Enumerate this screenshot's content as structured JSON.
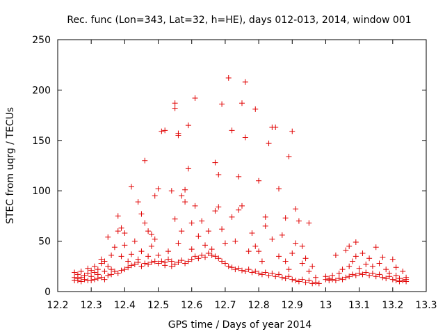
{
  "chart_data": {
    "type": "scatter",
    "title": "Rec. func (Lon=343, Lat=32, h=HE), days 012-013, 2014, window 001",
    "xlabel": "GPS time / Days of year 2014",
    "ylabel": "STEC from uqrg / TECUs",
    "xlim": [
      12.2,
      13.3
    ],
    "ylim": [
      0,
      250
    ],
    "xticks": [
      12.2,
      12.3,
      12.4,
      12.5,
      12.6,
      12.7,
      12.8,
      12.9,
      13,
      13.1,
      13.2,
      13.3
    ],
    "xtick_labels": [
      "12.2",
      "12.3",
      "12.4",
      "12.5",
      "12.6",
      "12.7",
      "12.8",
      "12.9",
      "13",
      "13.1",
      "13.2",
      "13.3"
    ],
    "yticks": [
      0,
      50,
      100,
      150,
      200,
      250
    ],
    "ytick_labels": [
      "0",
      "50",
      "100",
      "150",
      "200",
      "250"
    ],
    "marker": "plus",
    "color": "#e00000",
    "grid": false,
    "series": [
      {
        "name": "STEC",
        "points": [
          [
            12.25,
            11
          ],
          [
            12.25,
            14
          ],
          [
            12.25,
            19
          ],
          [
            12.26,
            11
          ],
          [
            12.26,
            13
          ],
          [
            12.26,
            17
          ],
          [
            12.27,
            10
          ],
          [
            12.27,
            14
          ],
          [
            12.27,
            20
          ],
          [
            12.28,
            12
          ],
          [
            12.28,
            16
          ],
          [
            12.29,
            11
          ],
          [
            12.29,
            18
          ],
          [
            12.29,
            23
          ],
          [
            12.3,
            11
          ],
          [
            12.3,
            15
          ],
          [
            12.3,
            21
          ],
          [
            12.31,
            12
          ],
          [
            12.31,
            19
          ],
          [
            12.31,
            25
          ],
          [
            12.32,
            13
          ],
          [
            12.32,
            17
          ],
          [
            12.32,
            22
          ],
          [
            12.33,
            14
          ],
          [
            12.33,
            28
          ],
          [
            12.33,
            32
          ],
          [
            12.34,
            12
          ],
          [
            12.34,
            20
          ],
          [
            12.34,
            30
          ],
          [
            12.35,
            16
          ],
          [
            12.35,
            25
          ],
          [
            12.35,
            54
          ],
          [
            12.36,
            17
          ],
          [
            12.36,
            22
          ],
          [
            12.36,
            36
          ],
          [
            12.37,
            20
          ],
          [
            12.37,
            44
          ],
          [
            12.38,
            18
          ],
          [
            12.38,
            60
          ],
          [
            12.38,
            75
          ],
          [
            12.39,
            21
          ],
          [
            12.39,
            35
          ],
          [
            12.39,
            63
          ],
          [
            12.4,
            22
          ],
          [
            12.4,
            46
          ],
          [
            12.4,
            58
          ],
          [
            12.41,
            24
          ],
          [
            12.41,
            30
          ],
          [
            12.42,
            26
          ],
          [
            12.42,
            104
          ],
          [
            12.42,
            37
          ],
          [
            12.43,
            27
          ],
          [
            12.43,
            50
          ],
          [
            12.44,
            29
          ],
          [
            12.44,
            89
          ],
          [
            12.44,
            32
          ],
          [
            12.45,
            25
          ],
          [
            12.45,
            40
          ],
          [
            12.45,
            77
          ],
          [
            12.46,
            28
          ],
          [
            12.46,
            68
          ],
          [
            12.46,
            130
          ],
          [
            12.47,
            27
          ],
          [
            12.47,
            35
          ],
          [
            12.47,
            60
          ],
          [
            12.48,
            29
          ],
          [
            12.48,
            45
          ],
          [
            12.48,
            57
          ],
          [
            12.49,
            30
          ],
          [
            12.49,
            52
          ],
          [
            12.49,
            95
          ],
          [
            12.5,
            28
          ],
          [
            12.5,
            36
          ],
          [
            12.5,
            102
          ],
          [
            12.51,
            30
          ],
          [
            12.51,
            159
          ],
          [
            12.52,
            29
          ],
          [
            12.52,
            160
          ],
          [
            12.52,
            26
          ],
          [
            12.53,
            32
          ],
          [
            12.53,
            40
          ],
          [
            12.54,
            30
          ],
          [
            12.54,
            100
          ],
          [
            12.54,
            25
          ],
          [
            12.55,
            27
          ],
          [
            12.55,
            72
          ],
          [
            12.55,
            187
          ],
          [
            12.55,
            182
          ],
          [
            12.56,
            29
          ],
          [
            12.56,
            48
          ],
          [
            12.56,
            155
          ],
          [
            12.56,
            157
          ],
          [
            12.57,
            31
          ],
          [
            12.57,
            60
          ],
          [
            12.57,
            95
          ],
          [
            12.58,
            28
          ],
          [
            12.58,
            101
          ],
          [
            12.58,
            89
          ],
          [
            12.59,
            30
          ],
          [
            12.59,
            122
          ],
          [
            12.59,
            165
          ],
          [
            12.6,
            32
          ],
          [
            12.6,
            42
          ],
          [
            12.6,
            68
          ],
          [
            12.61,
            35
          ],
          [
            12.61,
            192
          ],
          [
            12.61,
            85
          ],
          [
            12.62,
            33
          ],
          [
            12.62,
            55
          ],
          [
            12.63,
            36
          ],
          [
            12.63,
            70
          ],
          [
            12.64,
            34
          ],
          [
            12.64,
            46
          ],
          [
            12.65,
            38
          ],
          [
            12.65,
            60
          ],
          [
            12.66,
            36
          ],
          [
            12.66,
            42
          ],
          [
            12.67,
            35
          ],
          [
            12.67,
            128
          ],
          [
            12.67,
            80
          ],
          [
            12.68,
            33
          ],
          [
            12.68,
            116
          ],
          [
            12.68,
            84
          ],
          [
            12.69,
            30
          ],
          [
            12.69,
            186
          ],
          [
            12.69,
            62
          ],
          [
            12.7,
            28
          ],
          [
            12.7,
            48
          ],
          [
            12.71,
            25
          ],
          [
            12.71,
            212
          ],
          [
            12.72,
            24
          ],
          [
            12.72,
            160
          ],
          [
            12.72,
            74
          ],
          [
            12.73,
            22
          ],
          [
            12.73,
            50
          ],
          [
            12.74,
            23
          ],
          [
            12.74,
            114
          ],
          [
            12.74,
            81
          ],
          [
            12.75,
            21
          ],
          [
            12.75,
            187
          ],
          [
            12.75,
            85
          ],
          [
            12.76,
            20
          ],
          [
            12.76,
            153
          ],
          [
            12.76,
            208
          ],
          [
            12.77,
            22
          ],
          [
            12.77,
            40
          ],
          [
            12.78,
            19
          ],
          [
            12.78,
            58
          ],
          [
            12.79,
            20
          ],
          [
            12.79,
            181
          ],
          [
            12.79,
            45
          ],
          [
            12.8,
            18
          ],
          [
            12.8,
            110
          ],
          [
            12.8,
            40
          ],
          [
            12.81,
            17
          ],
          [
            12.81,
            30
          ],
          [
            12.82,
            19
          ],
          [
            12.82,
            74
          ],
          [
            12.82,
            65
          ],
          [
            12.83,
            16
          ],
          [
            12.83,
            147
          ],
          [
            12.84,
            18
          ],
          [
            12.84,
            163
          ],
          [
            12.84,
            52
          ],
          [
            12.85,
            15
          ],
          [
            12.85,
            163
          ],
          [
            12.86,
            17
          ],
          [
            12.86,
            102
          ],
          [
            12.86,
            35
          ],
          [
            12.87,
            14
          ],
          [
            12.87,
            56
          ],
          [
            12.88,
            13
          ],
          [
            12.88,
            73
          ],
          [
            12.88,
            30
          ],
          [
            12.89,
            15
          ],
          [
            12.89,
            134
          ],
          [
            12.89,
            22
          ],
          [
            12.9,
            12
          ],
          [
            12.9,
            159
          ],
          [
            12.9,
            38
          ],
          [
            12.91,
            11
          ],
          [
            12.91,
            82
          ],
          [
            12.91,
            48
          ],
          [
            12.92,
            10
          ],
          [
            12.92,
            70
          ],
          [
            12.93,
            12
          ],
          [
            12.93,
            45
          ],
          [
            12.93,
            28
          ],
          [
            12.94,
            9
          ],
          [
            12.94,
            33
          ],
          [
            12.95,
            11
          ],
          [
            12.95,
            68
          ],
          [
            12.95,
            20
          ],
          [
            12.96,
            8
          ],
          [
            12.96,
            25
          ],
          [
            12.97,
            9
          ],
          [
            12.97,
            14
          ],
          [
            12.98,
            8
          ],
          [
            13.0,
            12
          ],
          [
            13.0,
            15
          ],
          [
            13.01,
            11
          ],
          [
            13.01,
            13
          ],
          [
            13.02,
            12
          ],
          [
            13.02,
            16
          ],
          [
            13.03,
            11
          ],
          [
            13.03,
            36
          ],
          [
            13.04,
            13
          ],
          [
            13.04,
            18
          ],
          [
            13.05,
            12
          ],
          [
            13.05,
            22
          ],
          [
            13.06,
            14
          ],
          [
            13.06,
            41
          ],
          [
            13.07,
            15
          ],
          [
            13.07,
            25
          ],
          [
            13.07,
            45
          ],
          [
            13.08,
            17
          ],
          [
            13.08,
            30
          ],
          [
            13.09,
            16
          ],
          [
            13.09,
            49
          ],
          [
            13.09,
            35
          ],
          [
            13.1,
            18
          ],
          [
            13.1,
            23
          ],
          [
            13.11,
            17
          ],
          [
            13.11,
            38
          ],
          [
            13.12,
            19
          ],
          [
            13.12,
            27
          ],
          [
            13.13,
            16
          ],
          [
            13.13,
            33
          ],
          [
            13.14,
            18
          ],
          [
            13.14,
            25
          ],
          [
            13.15,
            15
          ],
          [
            13.15,
            44
          ],
          [
            13.16,
            17
          ],
          [
            13.16,
            28
          ],
          [
            13.17,
            14
          ],
          [
            13.17,
            34
          ],
          [
            13.18,
            13
          ],
          [
            13.18,
            22
          ],
          [
            13.19,
            15
          ],
          [
            13.19,
            18
          ],
          [
            13.2,
            12
          ],
          [
            13.2,
            32
          ],
          [
            13.21,
            11
          ],
          [
            13.21,
            16
          ],
          [
            13.21,
            24
          ],
          [
            13.22,
            10
          ],
          [
            13.22,
            13
          ],
          [
            13.23,
            11
          ],
          [
            13.23,
            20
          ],
          [
            13.24,
            10
          ],
          [
            13.24,
            14
          ],
          [
            13.24,
            12
          ]
        ]
      }
    ]
  }
}
